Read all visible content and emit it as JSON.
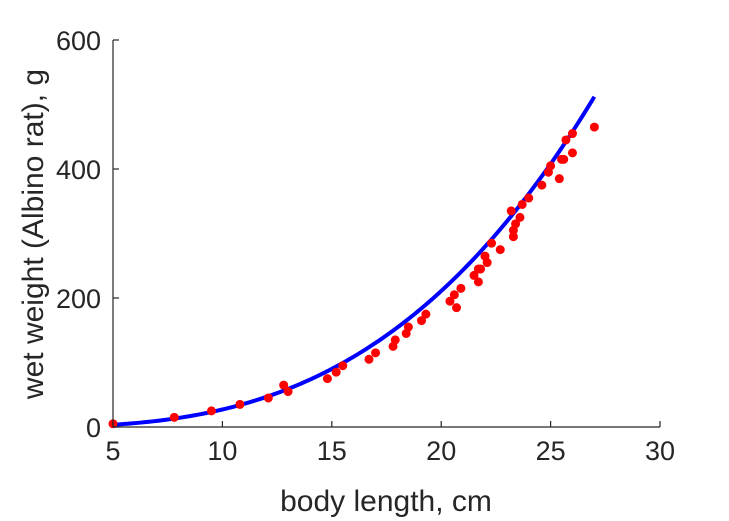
{
  "chart_data": {
    "type": "scatter",
    "title": "",
    "xlabel": "body length, cm",
    "ylabel": "wet weight (Albino rat), g",
    "xlim": [
      5,
      30
    ],
    "ylim": [
      0,
      600
    ],
    "xticks": [
      5,
      10,
      15,
      20,
      25,
      30
    ],
    "yticks": [
      0,
      200,
      400,
      600
    ],
    "grid": false,
    "box": false,
    "series": [
      {
        "kind": "points",
        "color": "#ff0000",
        "x": [
          5.0,
          7.8,
          9.5,
          10.8,
          12.1,
          12.8,
          13.0,
          14.8,
          15.2,
          15.5,
          16.7,
          17.0,
          17.8,
          17.9,
          18.4,
          18.5,
          19.1,
          19.3,
          20.4,
          20.6,
          20.7,
          20.9,
          21.5,
          21.7,
          21.7,
          21.8,
          22.0,
          22.1,
          22.3,
          22.7,
          23.2,
          23.3,
          23.3,
          23.4,
          23.6,
          23.7,
          24.0,
          24.6,
          24.9,
          25.0,
          25.4,
          25.5,
          25.6,
          25.7,
          26.0,
          26.0,
          27.0
        ],
        "y": [
          5,
          15,
          25,
          35,
          45,
          65,
          55,
          75,
          85,
          95,
          105,
          115,
          125,
          135,
          145,
          155,
          165,
          175,
          195,
          205,
          185,
          215,
          235,
          245,
          225,
          245,
          265,
          255,
          285,
          275,
          335,
          305,
          295,
          315,
          325,
          345,
          355,
          375,
          395,
          405,
          385,
          415,
          415,
          445,
          425,
          455,
          465
        ]
      },
      {
        "kind": "fit-curve",
        "color": "#0000ff",
        "x_range": [
          5,
          27
        ],
        "y_range": [
          3.5,
          512
        ]
      }
    ]
  }
}
